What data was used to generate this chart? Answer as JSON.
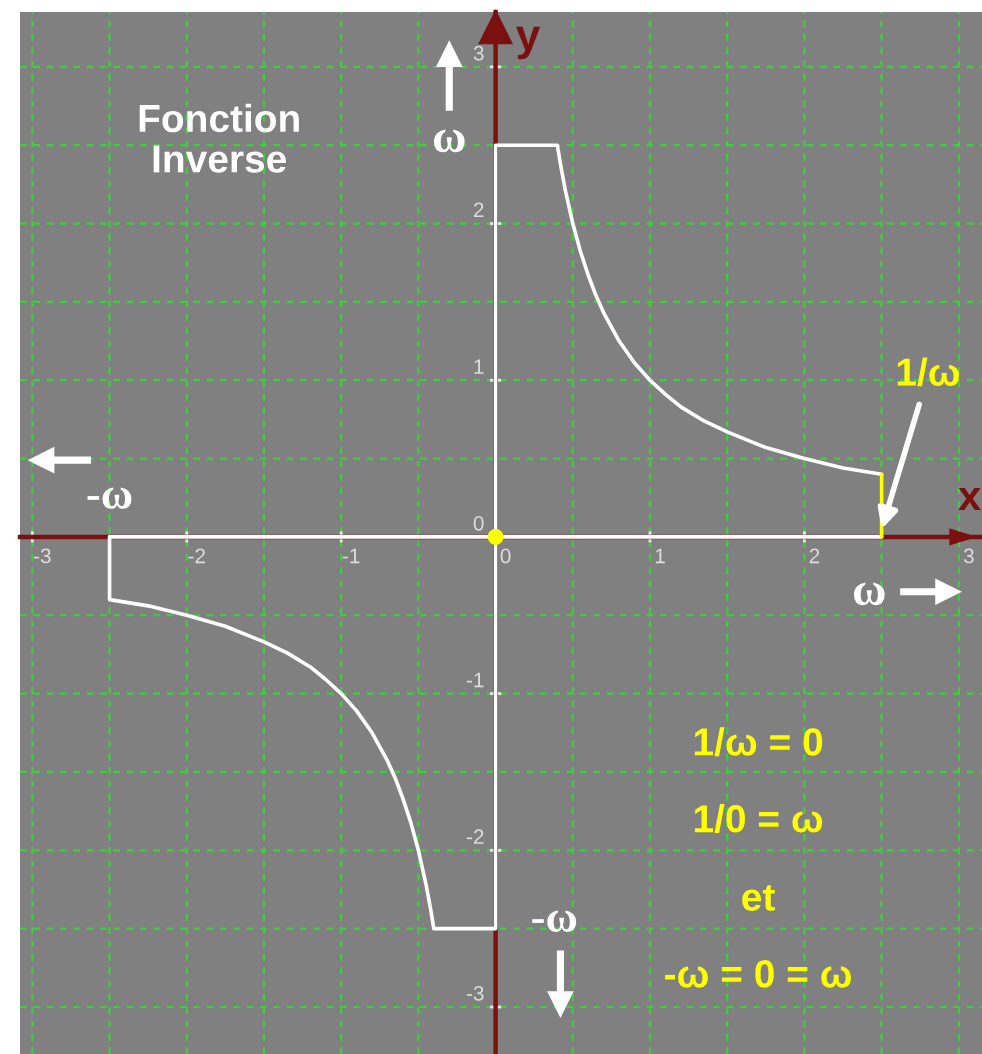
{
  "chart_data": {
    "type": "line",
    "title": "Fonction\nInverse",
    "xlabel": "x",
    "ylabel": "y",
    "xlim": [
      -3.08,
      3.15
    ],
    "ylim": [
      -3.3,
      3.35
    ],
    "xticks": [
      -3,
      {
        "value": -2.5,
        "label": null
      },
      -2,
      {
        "value": -1.5,
        "label": null
      },
      -1,
      {
        "value": -0.5,
        "label": null
      },
      0,
      {
        "value": 0.5,
        "label": null
      },
      1,
      {
        "value": 1.5,
        "label": null
      },
      2,
      {
        "value": 2.5,
        "label": null
      },
      3
    ],
    "yticks": [
      -3,
      {
        "value": -2.5,
        "label": null
      },
      -2,
      {
        "value": -1.5,
        "label": null
      },
      -1,
      {
        "value": -0.5,
        "label": null
      },
      0,
      {
        "value": 0.5,
        "label": null
      },
      1,
      {
        "value": 1.5,
        "label": null
      },
      2,
      {
        "value": 2.5,
        "label": null
      },
      3
    ],
    "grid": true,
    "line_style": "solid",
    "series": [
      {
        "color": "#ffffff",
        "x": [
          2.5,
          0,
          0,
          0.4,
          0.42,
          0.45,
          0.5,
          0.55,
          0.6,
          0.65,
          0.7,
          0.8,
          0.9,
          1,
          1.1,
          1.2,
          1.35,
          1.5,
          1.75,
          2,
          2.25,
          2.5
        ],
        "values": [
          0,
          0,
          2.5,
          2.5,
          2.38,
          2.22,
          2,
          1.82,
          1.67,
          1.54,
          1.43,
          1.25,
          1.11,
          1,
          0.91,
          0.83,
          0.74,
          0.67,
          0.57,
          0.5,
          0.44,
          0.4
        ]
      },
      {
        "color": "#ffff00",
        "x": [
          2.5,
          2.5
        ],
        "values": [
          0.4,
          0
        ]
      },
      {
        "color": "#ffffff",
        "x": [
          -2.5,
          -2.5,
          -2.25,
          -2,
          -1.75,
          -1.5,
          -1.35,
          -1.2,
          -1.1,
          -1,
          -0.9,
          -0.8,
          -0.7,
          -0.65,
          -0.6,
          -0.55,
          -0.5,
          -0.45,
          -0.42,
          -0.4,
          0,
          0
        ],
        "values": [
          0,
          -0.4,
          -0.44,
          -0.5,
          -0.57,
          -0.67,
          -0.74,
          -0.83,
          -0.91,
          -1,
          -1.11,
          -1.25,
          -1.43,
          -1.54,
          -1.67,
          -1.82,
          -2,
          -2.22,
          -2.38,
          -2.5,
          -2.5,
          0
        ]
      },
      {
        "color": "#ffffff",
        "x": [
          -2.5,
          0
        ],
        "values": [
          0,
          0
        ]
      },
      {
        "type": "scatter",
        "color": "#ffff00",
        "marker": "circle",
        "x": [
          0
        ],
        "values": [
          0
        ]
      }
    ],
    "annotations": [
      "ω",
      "-ω",
      "ω",
      "-ω",
      {
        "text": "1/ω",
        "x": 2.5,
        "y": 0.05
      },
      "1/ω = 0",
      "1/0 = ω",
      "et",
      "-ω = 0 = ω"
    ]
  }
}
